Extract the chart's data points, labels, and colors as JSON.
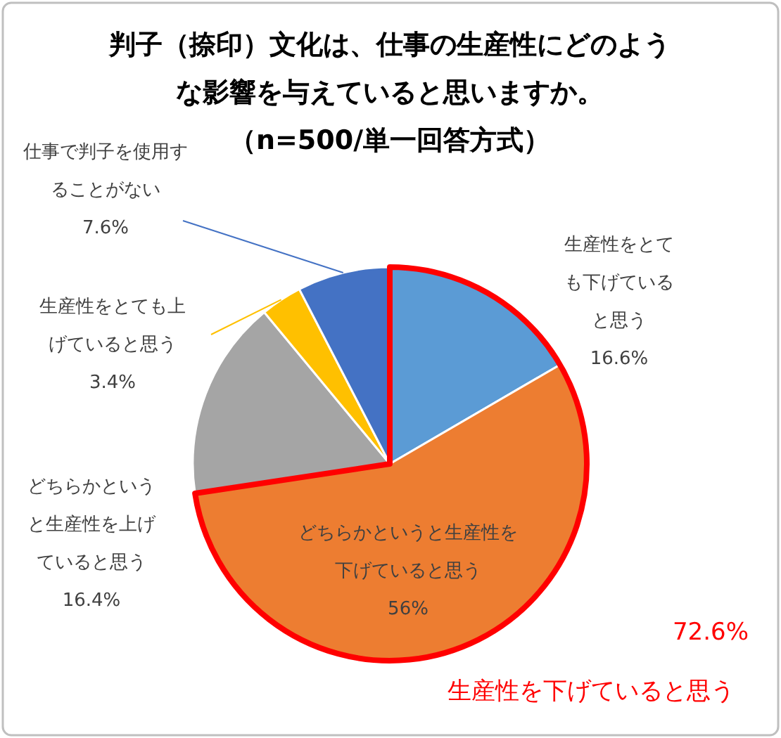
{
  "chart_data": {
    "type": "pie",
    "title": "判子（捺印）文化は、仕事の生産性にどのような影響を与えていると思いますか。",
    "subtitle": "（n=500/単一回答方式）",
    "categories": [
      "生産性をとても下げていると思う",
      "どちらかというと生産性を下げていると思う",
      "どちらかというと生産性を上げていると思う",
      "生産性をとても上げていると思う",
      "仕事で判子を使用することがない"
    ],
    "values": [
      16.6,
      56,
      16.4,
      3.4,
      7.6
    ],
    "value_labels": [
      "16.6%",
      "56%",
      "16.4%",
      "3.4%",
      "7.6%"
    ],
    "colors": [
      "#5b9bd5",
      "#ed7d31",
      "#a5a5a5",
      "#ffc000",
      "#4472c4"
    ],
    "annotations": [
      "72.6%",
      "生産性を下げていると思う"
    ]
  }
}
